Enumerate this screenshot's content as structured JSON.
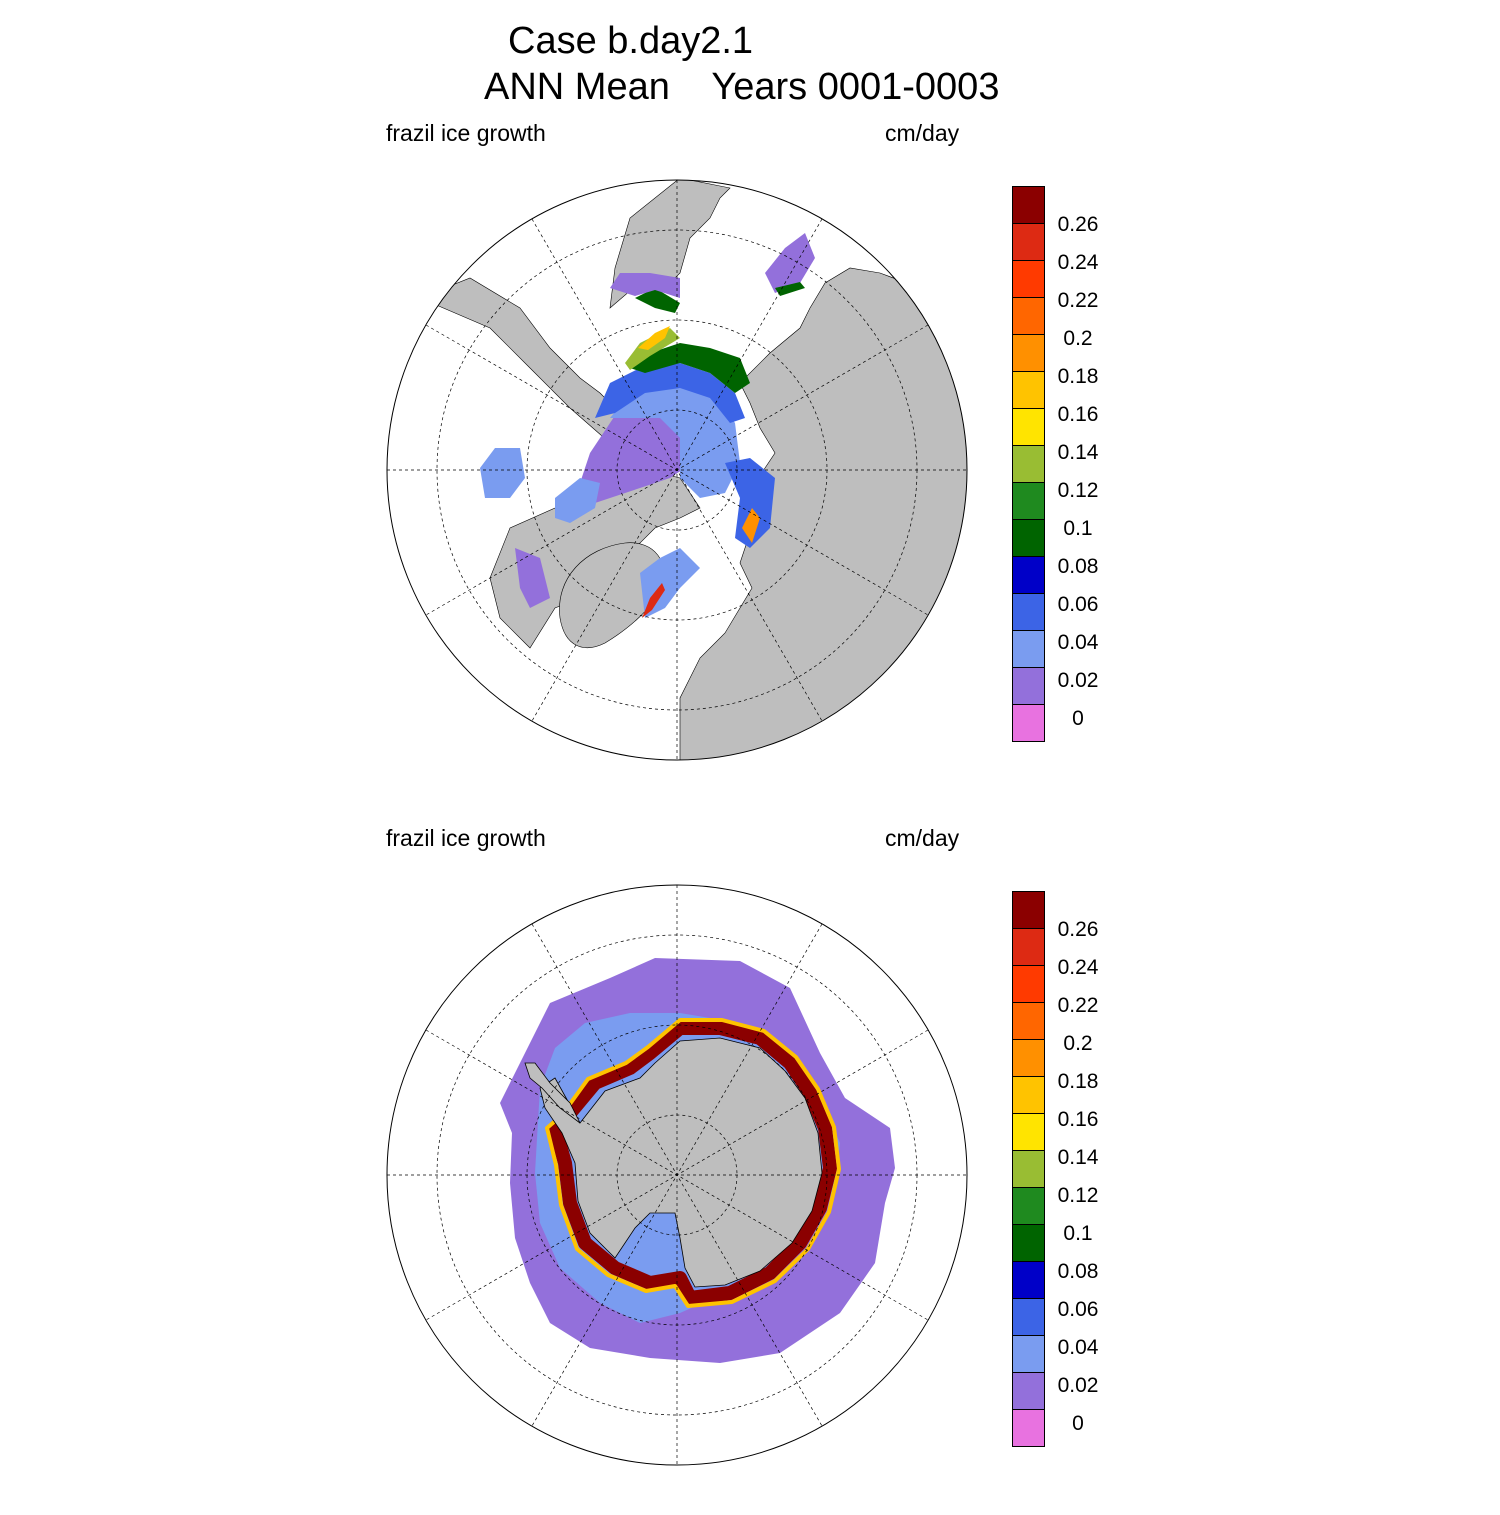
{
  "header": {
    "title": "Case b.day2.1",
    "subtitle": "ANN Mean    Years 0001-0003"
  },
  "panels": [
    {
      "hemisphere": "north",
      "variable": "frazil ice growth",
      "units": "cm/day"
    },
    {
      "hemisphere": "south",
      "variable": "frazil ice growth",
      "units": "cm/day"
    }
  ],
  "colorbar": {
    "labels": [
      "0.26",
      "0.24",
      "0.22",
      "0.2",
      "0.18",
      "0.16",
      "0.14",
      "0.12",
      "0.1",
      "0.08",
      "0.06",
      "0.04",
      "0.02",
      "0"
    ],
    "colors": [
      "#8b0000",
      "#dd2a13",
      "#ff3a00",
      "#ff6600",
      "#ff9000",
      "#ffc300",
      "#ffe400",
      "#99bd33",
      "#1f8a1f",
      "#006400",
      "#0000c8",
      "#3c64e6",
      "#7a9cf0",
      "#9370db",
      "#e872e0"
    ]
  },
  "map_colors": {
    "land": "#bebebe",
    "ocean_nodata": "#ffffff"
  }
}
